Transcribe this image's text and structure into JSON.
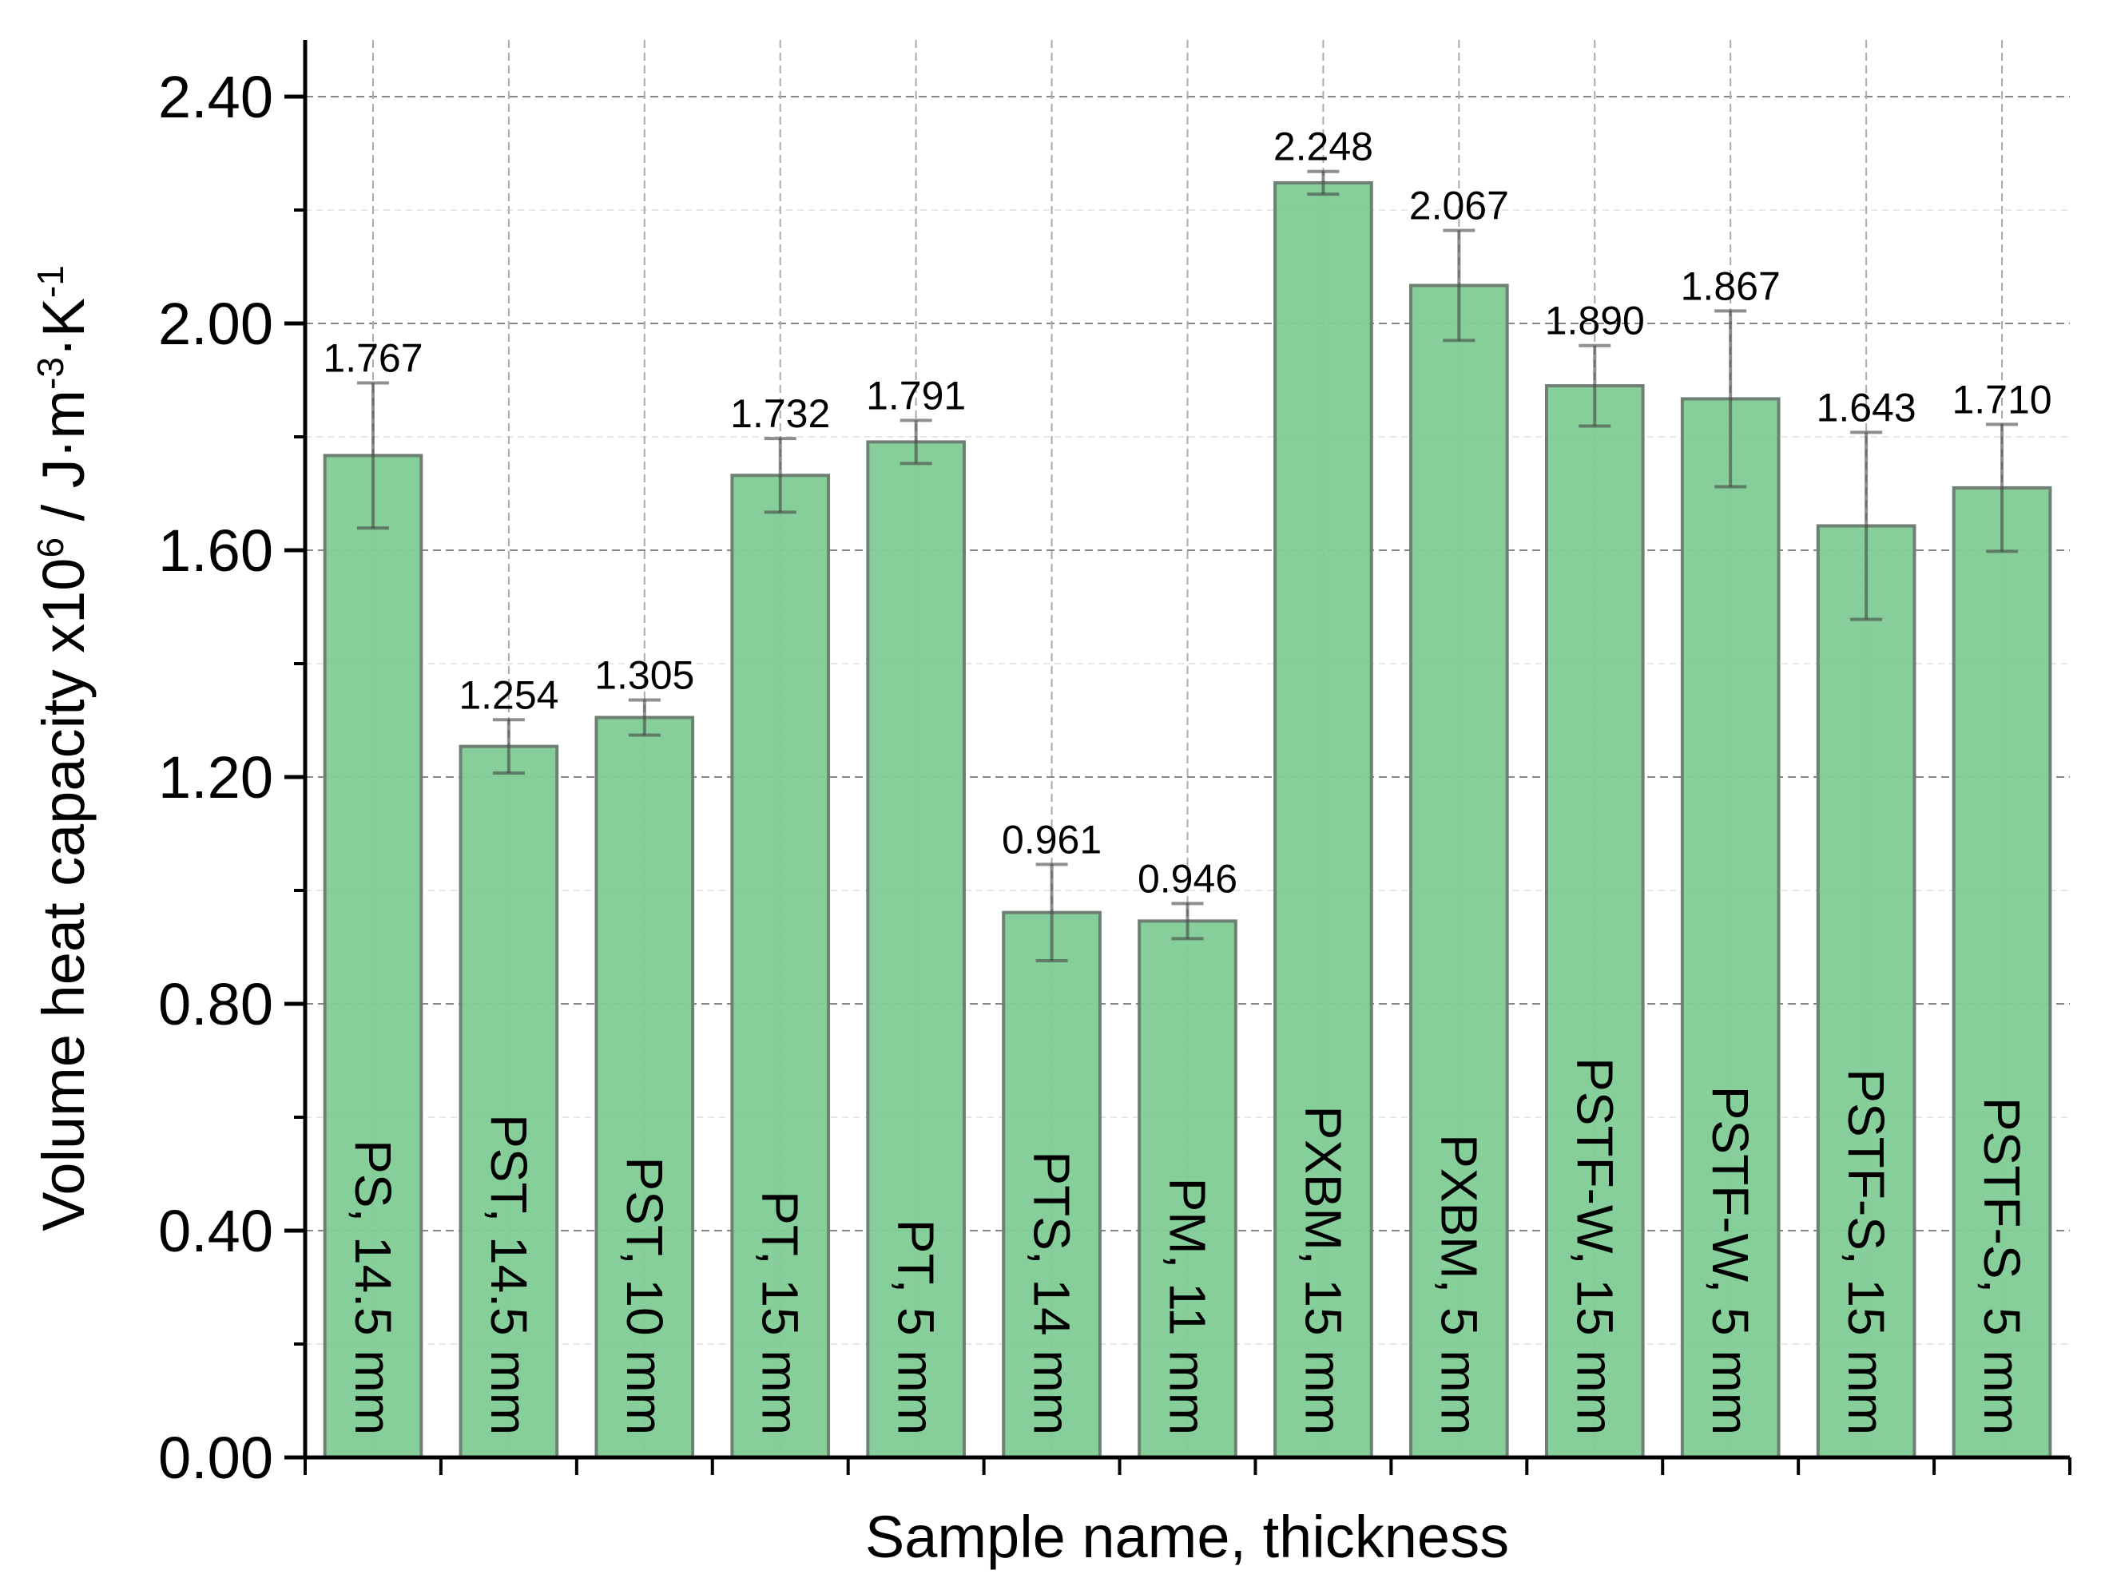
{
  "chart_data": {
    "type": "bar",
    "xlabel": "Sample name, thickness",
    "ylabel_parts": [
      "Volume heat capacity x10",
      "6",
      " / J·m",
      "-3",
      "·K",
      "-1"
    ],
    "categories": [
      "PS, 14.5 mm",
      "PST, 14.5 mm",
      "PST, 10 mm",
      "PT, 15 mm",
      "PT, 5 mm",
      "PTS, 14 mm",
      "PM, 11 mm",
      "PXBM, 15 mm",
      "PXBM, 5 mm",
      "PSTF-W, 15 mm",
      "PSTF-W, 5 mm",
      "PSTF-S, 15 mm",
      "PSTF-S, 5 mm"
    ],
    "values": [
      1.767,
      1.254,
      1.305,
      1.732,
      1.791,
      0.961,
      0.946,
      2.248,
      2.067,
      1.89,
      1.867,
      1.643,
      1.71
    ],
    "value_labels": [
      "1.767",
      "1.254",
      "1.305",
      "1.732",
      "1.791",
      "0.961",
      "0.946",
      "2.248",
      "2.067",
      "1.890",
      "1.867",
      "1.643",
      "1.710"
    ],
    "errors": [
      0.128,
      0.047,
      0.031,
      0.065,
      0.038,
      0.085,
      0.031,
      0.02,
      0.097,
      0.071,
      0.155,
      0.165,
      0.112
    ],
    "color": "#80cc95",
    "ylim": [
      0,
      2.5
    ],
    "yticks": [
      {
        "value": 0,
        "label": "0.00"
      },
      {
        "value": 0.4,
        "label": "0.40"
      },
      {
        "value": 0.8,
        "label": "0.80"
      },
      {
        "value": 1.2,
        "label": "1.20"
      },
      {
        "value": 1.6,
        "label": "1.60"
      },
      {
        "value": 2.0,
        "label": "2.00"
      },
      {
        "value": 2.4,
        "label": "2.40"
      }
    ],
    "yminorticks": [
      0.2,
      0.6,
      1.0,
      1.4,
      1.8,
      2.2
    ],
    "grid": true
  }
}
